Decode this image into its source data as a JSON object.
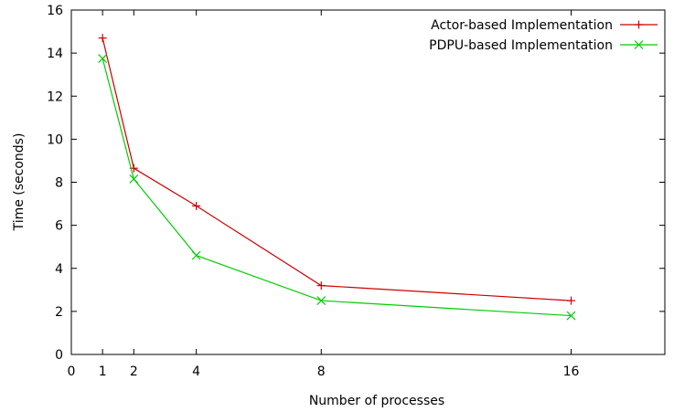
{
  "chart_data": {
    "type": "line",
    "title": "",
    "xlabel": "Number of processes",
    "ylabel": "Time (seconds)",
    "xlim": [
      0,
      19
    ],
    "ylim": [
      0,
      16
    ],
    "xticks": [
      0,
      1,
      2,
      4,
      8,
      16
    ],
    "yticks": [
      0,
      2,
      4,
      6,
      8,
      10,
      12,
      14,
      16
    ],
    "grid": false,
    "legend_position": "top-right",
    "series": [
      {
        "name": "Actor-based Implementation",
        "color": "#cc0000",
        "marker": "plus",
        "x": [
          1,
          2,
          4,
          8,
          16
        ],
        "y": [
          14.7,
          8.65,
          6.9,
          3.2,
          2.5
        ]
      },
      {
        "name": "PDPU-based Implementation",
        "color": "#00cc00",
        "marker": "cross",
        "x": [
          1,
          2,
          4,
          8,
          16
        ],
        "y": [
          13.75,
          8.15,
          4.6,
          2.5,
          1.8
        ]
      }
    ]
  }
}
